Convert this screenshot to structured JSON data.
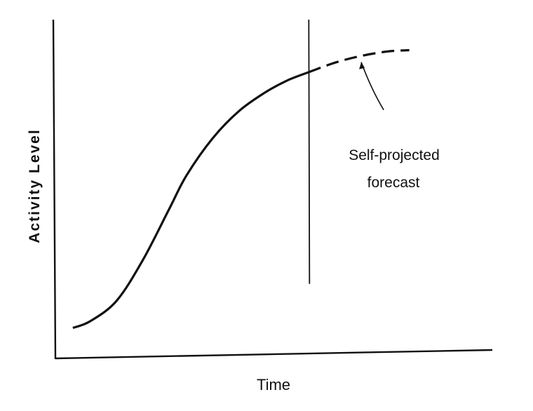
{
  "chart_data": {
    "type": "line",
    "title": "",
    "xlabel": "Time",
    "ylabel": "Activity Level",
    "grid": false,
    "legend": "none",
    "xlim": [
      0,
      100
    ],
    "ylim": [
      0,
      100
    ],
    "colors": {
      "curve": "#111111",
      "axes": "#111111"
    },
    "series": [
      {
        "style": "solid",
        "x": [
          4,
          8,
          14,
          20,
          26,
          30,
          36,
          42,
          48,
          53,
          58
        ],
        "y": [
          9,
          11,
          17,
          29,
          44,
          54,
          65,
          73,
          78.5,
          82,
          84.5
        ]
      },
      {
        "style": "dashed",
        "x": [
          58,
          64,
          70,
          76,
          81
        ],
        "y": [
          84.5,
          87.3,
          89.3,
          90.6,
          91
        ]
      }
    ],
    "vertical_line": {
      "x": 58,
      "y_range": [
        22,
        100
      ]
    },
    "annotations": [
      {
        "text_lines": [
          "Self-projected",
          "forecast"
        ],
        "points_to_x": 70
      }
    ]
  }
}
